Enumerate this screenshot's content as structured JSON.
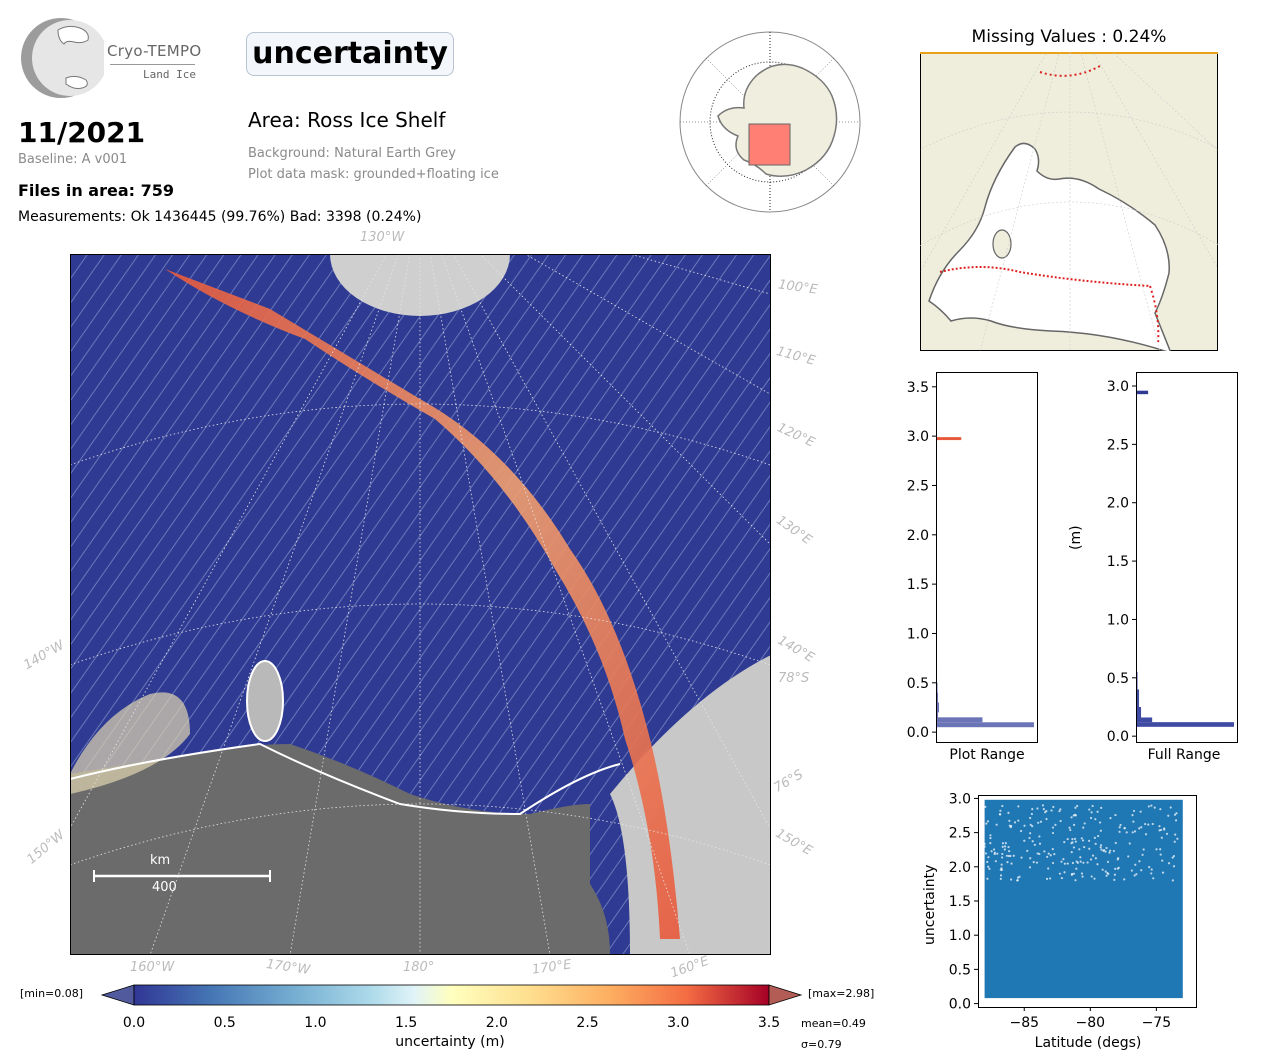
{
  "logo": {
    "title": "Cryo-TEMPO",
    "subtitle": "Land Ice"
  },
  "header": {
    "parameter": "uncertainty",
    "date": "11/2021",
    "baseline": "Baseline: A v001",
    "files": "Files in area: 759",
    "measurements": "Measurements: Ok 1436445 (99.76%) Bad: 3398 (0.24%)",
    "area": "Area: Ross Ice Shelf",
    "background": "Background: Natural Earth Grey",
    "mask": "Plot data mask: grounded+floating ice"
  },
  "missing_title": "Missing Values : 0.24%",
  "map_labels": {
    "top": "130°W",
    "right": [
      "100°E",
      "110°E",
      "120°E",
      "130°E",
      "140°E",
      "78°S",
      "76°S",
      "150°E"
    ],
    "left": [
      "140°W",
      "150°W"
    ],
    "bottom": [
      "160°W",
      "170°W",
      "180°",
      "170°E",
      "160°E"
    ]
  },
  "scale_bar": {
    "unit": "km",
    "value": "400"
  },
  "colorbar": {
    "label": "uncertainty (m)",
    "min_label": "[min=0.08]",
    "max_label": "[max=2.98]",
    "mean": "mean=0.49",
    "sigma": "σ=0.79",
    "ticks": [
      "0.0",
      "0.5",
      "1.0",
      "1.5",
      "2.0",
      "2.5",
      "3.0",
      "3.5"
    ],
    "colormap": "RdYlBu_r"
  },
  "colors": {
    "high": "#e8593c",
    "low": "#2f3b93",
    "mid": "#ffffbf",
    "land_bg": "#6b6b6b",
    "inset_land": "#efeedd",
    "scatter": "#1f77b4",
    "hist_plot": "#6a74b7",
    "hist_full": "#3f4aa2"
  },
  "chart_data": [
    {
      "type": "histogram",
      "xlabel": "Plot Range",
      "ylim": [
        -0.1,
        3.65
      ],
      "yticks": [
        "0.0",
        "0.5",
        "1.0",
        "1.5",
        "2.0",
        "2.5",
        "3.0",
        "3.5"
      ],
      "bins": [
        {
          "y0": 0.05,
          "y1": 0.1,
          "count": 0.97
        },
        {
          "y0": 0.1,
          "y1": 0.15,
          "count": 0.46
        },
        {
          "y0": 0.15,
          "y1": 0.2,
          "count": 0.02
        },
        {
          "y0": 0.2,
          "y1": 0.3,
          "count": 0.03
        },
        {
          "y0": 0.3,
          "y1": 0.4,
          "count": 0.02
        },
        {
          "y0": 0.4,
          "y1": 0.5,
          "count": 0.015
        },
        {
          "y0": 0.5,
          "y1": 0.7,
          "count": 0.01
        },
        {
          "y0": 2.96,
          "y1": 2.99,
          "count": 0.25
        }
      ]
    },
    {
      "type": "histogram",
      "xlabel": "Full Range",
      "ylabel": "(m)",
      "ylim": [
        -0.05,
        3.12
      ],
      "yticks": [
        "0.0",
        "0.5",
        "1.0",
        "1.5",
        "2.0",
        "2.5",
        "3.0"
      ],
      "bins": [
        {
          "y0": 0.08,
          "y1": 0.12,
          "count": 0.97
        },
        {
          "y0": 0.12,
          "y1": 0.16,
          "count": 0.16
        },
        {
          "y0": 0.16,
          "y1": 0.25,
          "count": 0.05
        },
        {
          "y0": 0.25,
          "y1": 0.4,
          "count": 0.03
        },
        {
          "y0": 0.4,
          "y1": 0.55,
          "count": 0.015
        },
        {
          "y0": 2.93,
          "y1": 2.96,
          "count": 0.12
        }
      ]
    },
    {
      "type": "scatter",
      "xlabel": "Latitude (degs)",
      "ylabel": "uncertainty",
      "xlim": [
        -88.5,
        -72.0
      ],
      "ylim": [
        -0.05,
        3.05
      ],
      "xticks": [
        "−85",
        "−80",
        "−75"
      ],
      "yticks": [
        "0.0",
        "0.5",
        "1.0",
        "1.5",
        "2.0",
        "2.5",
        "3.0"
      ],
      "x_range": [
        -88.0,
        -73.0
      ],
      "y_range": [
        0.08,
        2.98
      ]
    }
  ]
}
